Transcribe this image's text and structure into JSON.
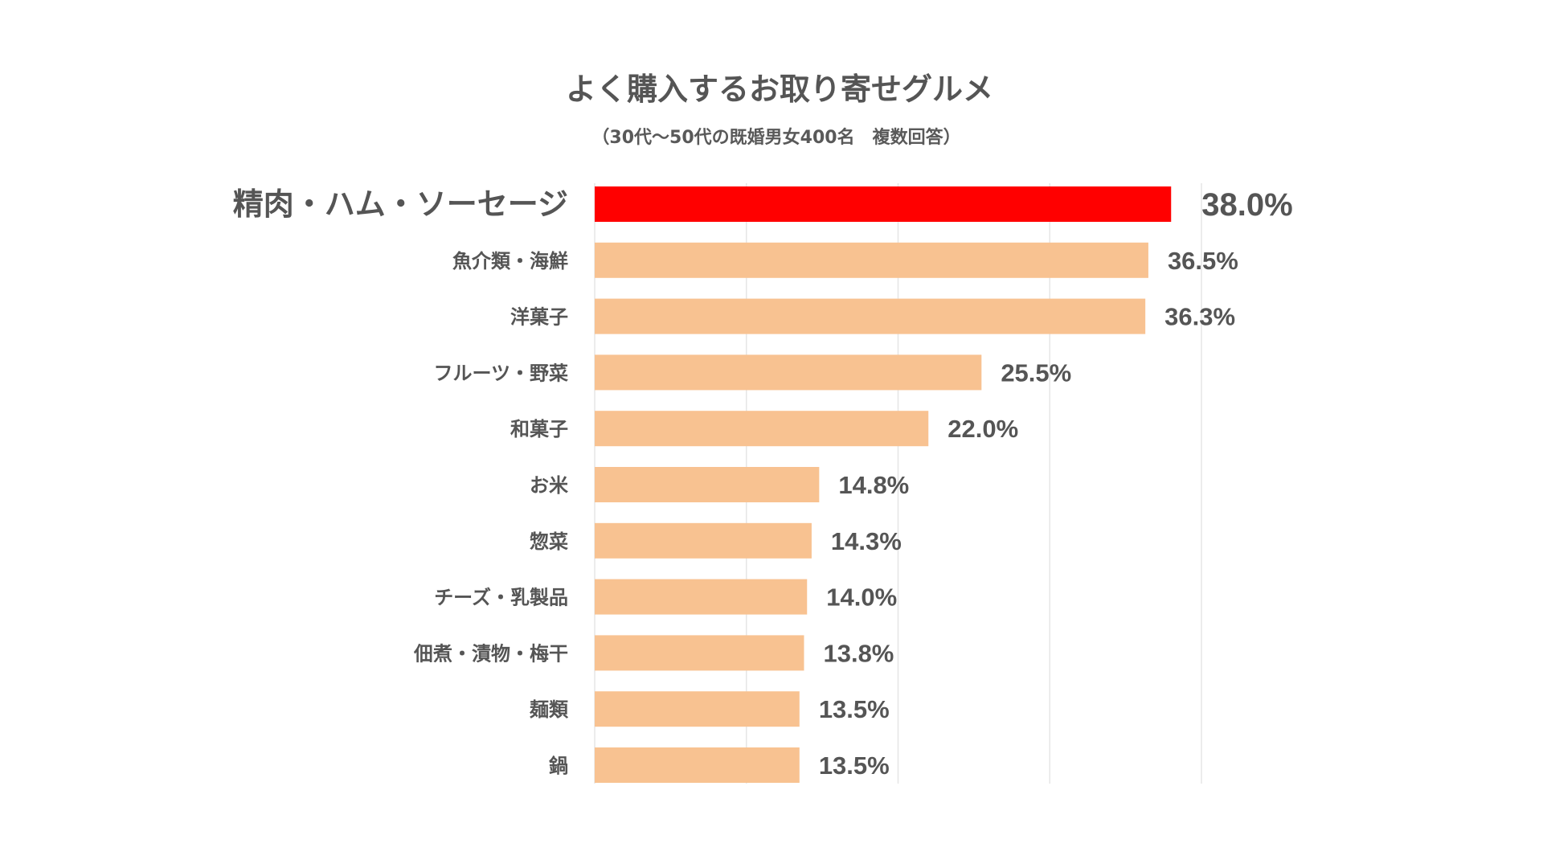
{
  "chart_data": {
    "type": "bar",
    "orientation": "horizontal",
    "title": "よく購入するお取り寄せグルメ",
    "subtitle": "（30代〜50代の既婚男女400名　複数回答）",
    "categories": [
      "精肉・ハム・ソーセージ",
      "魚介類・海鮮",
      "洋菓子",
      "フルーツ・野菜",
      "和菓子",
      "お米",
      "惣菜",
      "チーズ・乳製品",
      "佃煮・漬物・梅干",
      "麺類",
      "鍋"
    ],
    "values": [
      38.0,
      36.5,
      36.3,
      25.5,
      22.0,
      14.8,
      14.3,
      14.0,
      13.8,
      13.5,
      13.5
    ],
    "value_labels": [
      "38.0%",
      "36.5%",
      "36.3%",
      "25.5%",
      "22.0%",
      "14.8%",
      "14.3%",
      "14.0%",
      "13.8%",
      "13.5%",
      "13.5%"
    ],
    "highlight_index": 0,
    "xlim": [
      0,
      40
    ],
    "x_gridlines": [
      0,
      10,
      20,
      30,
      40
    ],
    "grid": true,
    "legend": "none",
    "colors": {
      "highlight_bar": "#ff0000",
      "highlight_text": "#ff0000",
      "bar": "#f8c291",
      "text": "#555555",
      "grid": "#e6e6e6"
    }
  }
}
